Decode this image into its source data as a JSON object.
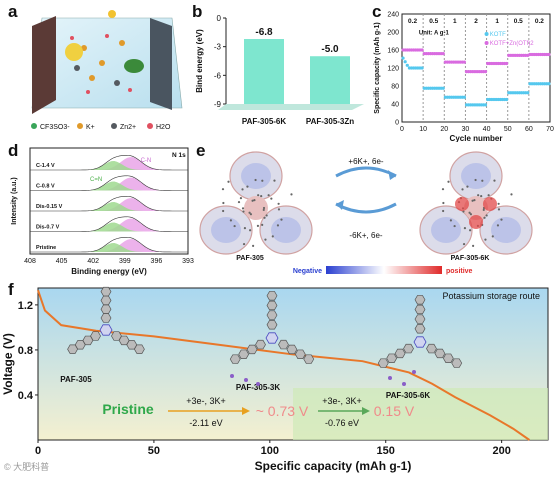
{
  "panel_labels": {
    "a": "a",
    "b": "b",
    "c": "c",
    "d": "d",
    "e": "e",
    "f": "f"
  },
  "panel_a": {
    "legend": [
      "CF3SO3-",
      "K+",
      "Zn2+",
      "H2O"
    ],
    "colors": {
      "bg": "#cfe9f2",
      "wall": "#3f4b55",
      "k": "#e09a2a",
      "zn": "#555a60",
      "water": "#e05060"
    }
  },
  "panel_b": {
    "chart_data": {
      "type": "bar",
      "categories": [
        "PAF-305-6K",
        "PAF-305-3Zn"
      ],
      "values": [
        -6.8,
        -5.0
      ],
      "value_labels": [
        "-6.8",
        "-5.0"
      ],
      "ylabel": "Bind energy (eV)",
      "ylim": [
        0,
        -9
      ],
      "yticks": [
        "0",
        "-3",
        "-6",
        "-9"
      ],
      "bar_color": "#7ee6cf",
      "base_color": "#bfe7dc"
    }
  },
  "panel_c": {
    "chart_data": {
      "type": "scatter",
      "xlabel": "Cycle number",
      "ylabel": "Specific capacity (mAh g-1)",
      "xlim": [
        0,
        70
      ],
      "ylim": [
        0,
        240
      ],
      "xticks": [
        "0",
        "10",
        "20",
        "30",
        "40",
        "50",
        "60",
        "70"
      ],
      "yticks": [
        "0",
        "40",
        "80",
        "120",
        "160",
        "200",
        "240"
      ],
      "rate_labels": [
        "0.2",
        "0.5",
        "1",
        "2",
        "1",
        "0.5",
        "0.2"
      ],
      "unit_label": "Unit: A g-1",
      "series": [
        {
          "name": "KOTF",
          "color": "#55c8ee",
          "segments": [
            [
              0,
              10,
              120
            ],
            [
              10,
              20,
              75
            ],
            [
              20,
              30,
              55
            ],
            [
              30,
              40,
              38
            ],
            [
              40,
              50,
              50
            ],
            [
              50,
              60,
              65
            ],
            [
              60,
              70,
              85
            ]
          ]
        },
        {
          "name": "KOTF+Zn(OTf)2",
          "color": "#d96be0",
          "segments": [
            [
              0,
              10,
              160
            ],
            [
              10,
              20,
              152
            ],
            [
              20,
              30,
              133
            ],
            [
              30,
              40,
              112
            ],
            [
              40,
              50,
              130
            ],
            [
              50,
              60,
              148
            ],
            [
              60,
              70,
              150
            ]
          ]
        }
      ]
    }
  },
  "panel_d": {
    "chart_data": {
      "type": "line",
      "xlabel": "Binding energy (eV)",
      "ylabel": "Intensity (a.u.)",
      "xticks": [
        "408",
        "405",
        "402",
        "399",
        "396",
        "393"
      ],
      "title_label": "N 1s",
      "peak_labels": [
        "C-N",
        "C=N"
      ],
      "traces": [
        "C-1.4 V",
        "C-0.8 V",
        "Dis-0.15 V",
        "Dis-0.7 V",
        "Pristine"
      ],
      "colors": {
        "cn": "#9fd98f",
        "ceqn": "#e9a4e8",
        "envelope": "#333333"
      }
    }
  },
  "panel_e": {
    "left_name": "PAF-305",
    "right_name": "PAF-305-6K",
    "forward": "+6K+, 6e-",
    "backward": "-6K+, 6e-",
    "scale_neg": "Negative",
    "scale_pos": "positive"
  },
  "panel_f": {
    "chart_data": {
      "type": "line",
      "title": "Potassium storage route",
      "xlabel": "Specific capacity (mAh g-1)",
      "ylabel": "Voltage (V)",
      "xlim": [
        0,
        220
      ],
      "ylim": [
        0,
        1.35
      ],
      "xticks": [
        "0",
        "50",
        "100",
        "150",
        "200"
      ],
      "yticks": [
        "0.4",
        "0.8",
        "1.2"
      ],
      "curve": [
        [
          0,
          1.33
        ],
        [
          3,
          1.15
        ],
        [
          10,
          1.02
        ],
        [
          25,
          0.97
        ],
        [
          50,
          0.92
        ],
        [
          80,
          0.84
        ],
        [
          110,
          0.76
        ],
        [
          140,
          0.7
        ],
        [
          160,
          0.6
        ],
        [
          170,
          0.5
        ],
        [
          180,
          0.38
        ],
        [
          195,
          0.22
        ],
        [
          205,
          0.1
        ],
        [
          212,
          0.0
        ]
      ],
      "structures": [
        "PAF-305",
        "PAF-305-3K",
        "PAF-305-6K"
      ],
      "steps": {
        "pristine": "Pristine",
        "step1_top": "+3e-, 3K+",
        "step1_bottom": "-2.11 eV",
        "step1_voltage": "~ 0.73 V",
        "step2_top": "+3e-, 3K+",
        "step2_bottom": "-0.76 eV",
        "step2_voltage": "0.15 V"
      },
      "colors": {
        "curve": "#e8772a",
        "pristine": "#2fa84a",
        "accent": "#d983e0",
        "voltage": "#f08a8a"
      }
    }
  },
  "watermark": "© 大肥科普"
}
